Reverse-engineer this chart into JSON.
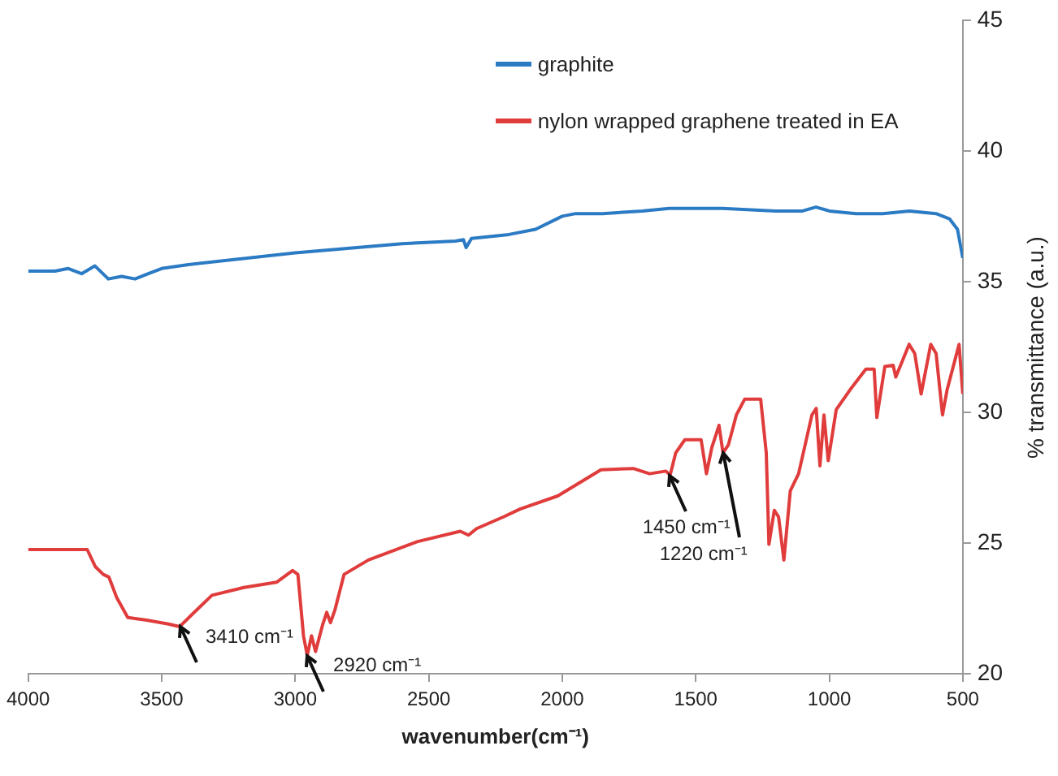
{
  "chart_data": {
    "type": "line",
    "xlabel": "wavenumber(cm⁻¹)",
    "ylabel": "% transmittance (a.u.)",
    "xlim": [
      4000,
      500
    ],
    "xticks": [
      4000,
      3500,
      3000,
      2500,
      2000,
      1500,
      1000,
      500
    ],
    "ylim": [
      20,
      45
    ],
    "yticks": [
      20,
      25,
      30,
      35,
      40,
      45
    ],
    "legend": "top",
    "marker": "none",
    "series": [
      {
        "name": "graphite",
        "color": "#2b7bc4",
        "x": [
          4000,
          3900,
          3850,
          3800,
          3750,
          3700,
          3650,
          3600,
          3550,
          3500,
          3400,
          3000,
          2600,
          2400,
          2370,
          2360,
          2340,
          2200,
          2100,
          2000,
          1950,
          1850,
          1700,
          1600,
          1400,
          1200,
          1100,
          1050,
          1000,
          900,
          800,
          700,
          600,
          550,
          520,
          500
        ],
        "values": [
          35.4,
          35.4,
          35.5,
          35.3,
          35.6,
          35.1,
          35.2,
          35.1,
          35.3,
          35.5,
          35.65,
          36.1,
          36.45,
          36.55,
          36.6,
          36.3,
          36.65,
          36.8,
          37.0,
          37.5,
          37.6,
          37.6,
          37.7,
          37.8,
          37.8,
          37.7,
          37.7,
          37.85,
          37.7,
          37.6,
          37.6,
          37.7,
          37.6,
          37.4,
          37.0,
          35.9
        ]
      },
      {
        "name": "nylon wrapped graphene treated in EA",
        "color": "#e03c3c",
        "x": [
          4000,
          3779,
          3749,
          3719,
          3698,
          3668,
          3627,
          3556,
          3475,
          3433,
          3388,
          3312,
          3192,
          3070,
          3010,
          2990,
          2969,
          2955,
          2939,
          2924,
          2898,
          2882,
          2868,
          2851,
          2817,
          2726,
          2544,
          2382,
          2351,
          2321,
          2220,
          2158,
          2017,
          1855,
          1734,
          1673,
          1612,
          1596,
          1575,
          1541,
          1480,
          1460,
          1440,
          1413,
          1398,
          1378,
          1348,
          1317,
          1257,
          1236,
          1226,
          1206,
          1190,
          1170,
          1146,
          1115,
          1065,
          1049,
          1035,
          1020,
          1004,
          974,
          923,
          863,
          832,
          822,
          792,
          761,
          751,
          701,
          680,
          656,
          620,
          600,
          576,
          559,
          514,
          500
        ],
        "values": [
          24.75,
          24.75,
          24.1,
          23.8,
          23.7,
          22.9,
          22.15,
          22.05,
          21.9,
          21.8,
          22.25,
          23.0,
          23.3,
          23.5,
          23.95,
          23.8,
          21.45,
          20.7,
          21.45,
          20.85,
          21.85,
          22.35,
          21.95,
          22.45,
          23.8,
          24.35,
          25.05,
          25.45,
          25.3,
          25.55,
          26.0,
          26.3,
          26.8,
          27.8,
          27.85,
          27.65,
          27.75,
          27.6,
          28.45,
          28.95,
          28.95,
          27.65,
          28.65,
          29.5,
          28.45,
          28.75,
          29.9,
          30.5,
          30.5,
          28.45,
          24.95,
          26.25,
          26.0,
          24.35,
          27.0,
          27.65,
          29.9,
          30.15,
          27.95,
          29.9,
          28.15,
          30.1,
          30.85,
          31.65,
          31.65,
          29.8,
          31.75,
          31.8,
          31.35,
          32.6,
          32.25,
          30.7,
          32.6,
          32.25,
          29.9,
          30.85,
          32.6,
          30.7
        ]
      }
    ],
    "annotations": [
      {
        "text": "3410 cm⁻¹",
        "x": 3433,
        "y": 21.8
      },
      {
        "text": "2920 cm⁻¹",
        "x": 2955,
        "y": 20.7
      },
      {
        "text": "1450 cm⁻¹",
        "x": 1596,
        "y": 27.6
      },
      {
        "text": "1220 cm⁻¹",
        "x": 1398,
        "y": 28.45
      }
    ]
  }
}
